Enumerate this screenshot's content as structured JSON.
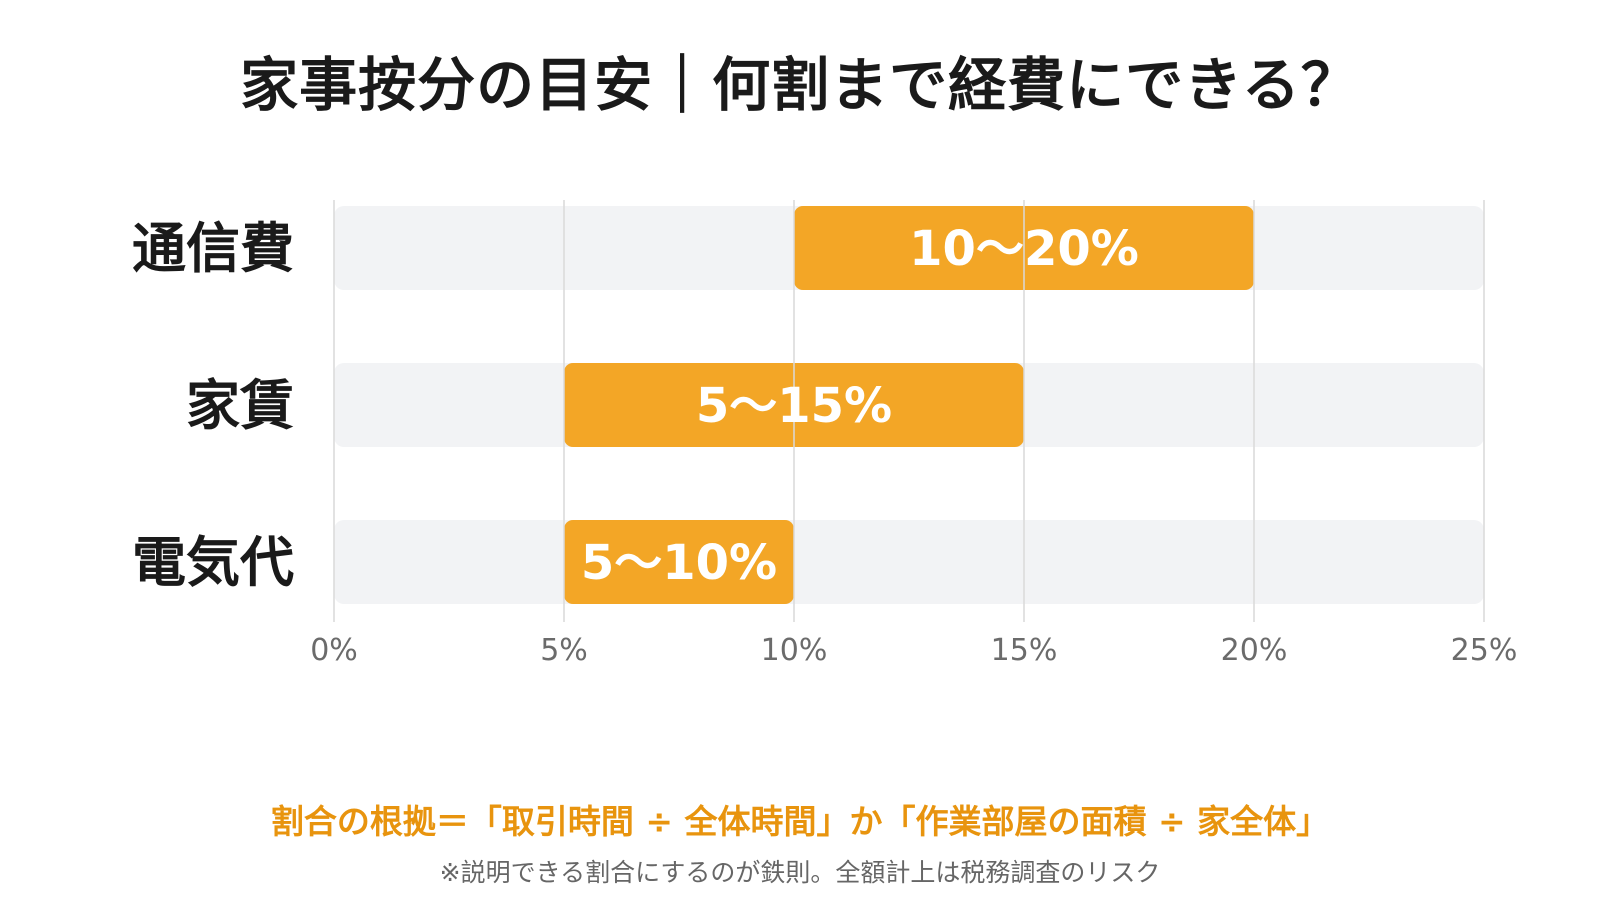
{
  "title": "家事按分の目安｜何割まで経費にできる？",
  "note_main": "割合の根拠＝「取引時間 ÷ 全体時間」か「作業部屋の面積 ÷ 家全体」",
  "note_sub": "※説明できる割合にするのが鉄則。全額計上は税務調査のリスク",
  "colors": {
    "bar": "#f3a626",
    "track": "#f2f3f5",
    "grid": "#d9d9d9",
    "category_text": "#1a1a1a",
    "tick_text": "#6b6b6b",
    "bar_label": "#ffffff",
    "note_main": "#e8940e"
  },
  "chart_data": {
    "type": "bar",
    "orientation": "horizontal",
    "categories": [
      "通信費",
      "家賃",
      "電気代"
    ],
    "ranges": [
      [
        10,
        20
      ],
      [
        5,
        15
      ],
      [
        5,
        10
      ]
    ],
    "range_labels": [
      "10〜20%",
      "5〜15%",
      "5〜10%"
    ],
    "xlim": [
      0,
      25
    ],
    "ticks": [
      0,
      5,
      10,
      15,
      20,
      25
    ],
    "tick_labels": [
      "0%",
      "5%",
      "10%",
      "15%",
      "20%",
      "25%"
    ],
    "grid": true,
    "legend": "none"
  }
}
